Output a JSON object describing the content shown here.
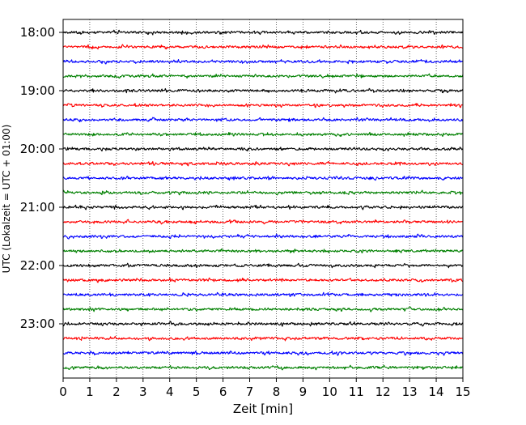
{
  "chart_data": {
    "type": "line",
    "chart_kind": "helicorder seismogram (stacked 15-minute traces)",
    "xlabel": "Zeit  [min]",
    "ylabel": "UTC (Lokalzeit = UTC + 01:00)",
    "xlim": [
      0,
      15
    ],
    "x_ticks": [
      "0",
      "1",
      "2",
      "3",
      "4",
      "5",
      "6",
      "7",
      "8",
      "9",
      "10",
      "11",
      "12",
      "13",
      "14",
      "15"
    ],
    "y_ticks": [
      "18:00",
      "19:00",
      "20:00",
      "21:00",
      "22:00",
      "23:00"
    ],
    "vertical_grid": "dotted at every minute",
    "trace_count": 24,
    "trace_interval_minutes": 15,
    "trace_colors": [
      "#000000",
      "#ff0000",
      "#0000ff",
      "#008000"
    ],
    "traces": [
      {
        "start": "18:00",
        "color": "#000000"
      },
      {
        "start": "18:15",
        "color": "#ff0000"
      },
      {
        "start": "18:30",
        "color": "#0000ff"
      },
      {
        "start": "18:45",
        "color": "#008000"
      },
      {
        "start": "19:00",
        "color": "#000000"
      },
      {
        "start": "19:15",
        "color": "#ff0000"
      },
      {
        "start": "19:30",
        "color": "#0000ff"
      },
      {
        "start": "19:45",
        "color": "#008000"
      },
      {
        "start": "20:00",
        "color": "#000000"
      },
      {
        "start": "20:15",
        "color": "#ff0000"
      },
      {
        "start": "20:30",
        "color": "#0000ff"
      },
      {
        "start": "20:45",
        "color": "#008000"
      },
      {
        "start": "21:00",
        "color": "#000000"
      },
      {
        "start": "21:15",
        "color": "#ff0000"
      },
      {
        "start": "21:30",
        "color": "#0000ff"
      },
      {
        "start": "21:45",
        "color": "#008000"
      },
      {
        "start": "22:00",
        "color": "#000000"
      },
      {
        "start": "22:15",
        "color": "#ff0000"
      },
      {
        "start": "22:30",
        "color": "#0000ff"
      },
      {
        "start": "22:45",
        "color": "#008000"
      },
      {
        "start": "23:00",
        "color": "#000000"
      },
      {
        "start": "23:15",
        "color": "#ff0000"
      },
      {
        "start": "23:30",
        "color": "#0000ff"
      },
      {
        "start": "23:45",
        "color": "#008000"
      }
    ]
  }
}
